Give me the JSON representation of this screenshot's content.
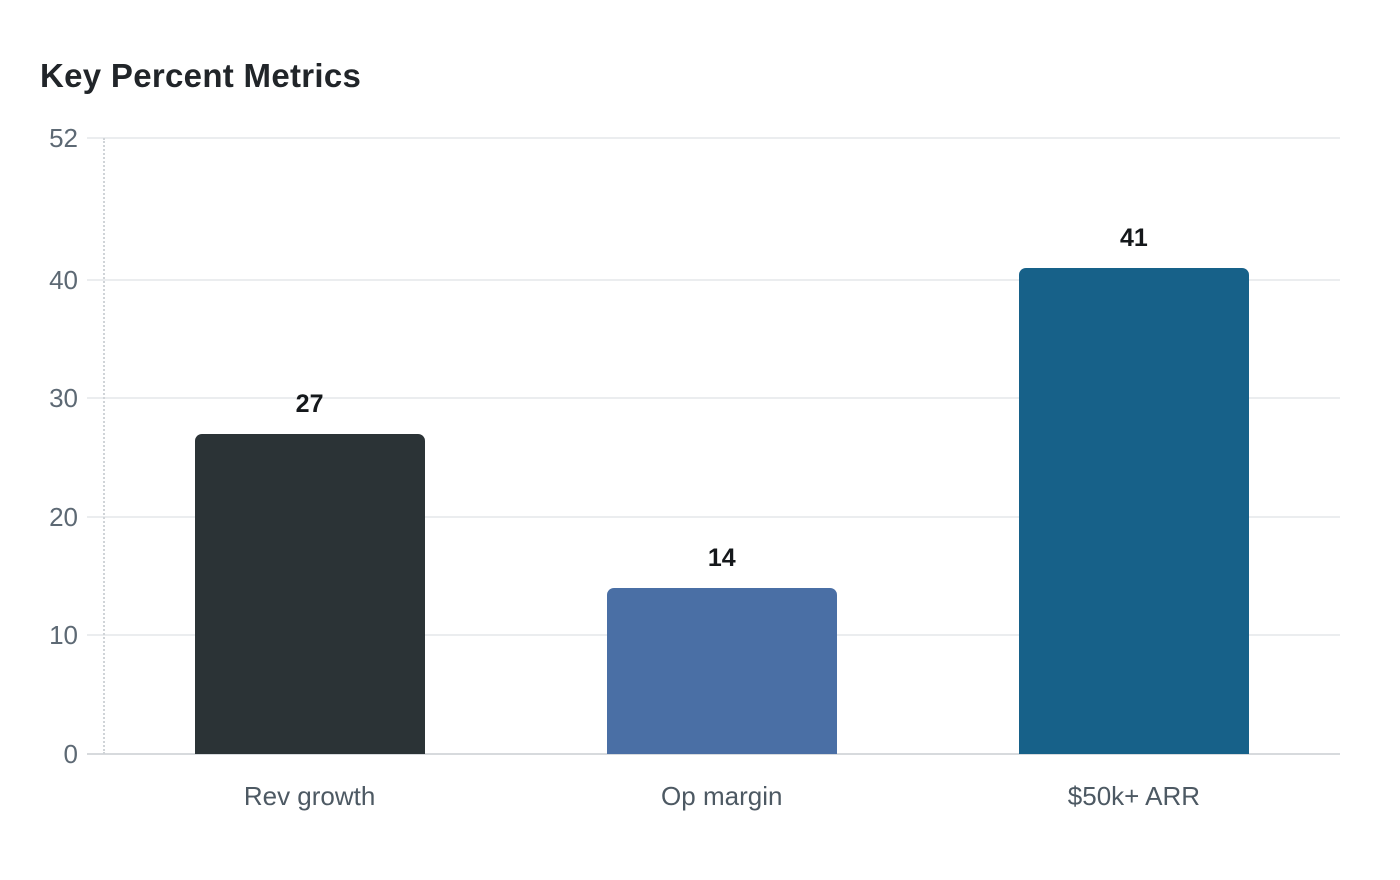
{
  "chart_data": {
    "type": "bar",
    "title": "Key Percent Metrics",
    "categories": [
      "Rev growth",
      "Op margin",
      "$50k+ ARR"
    ],
    "values": [
      27,
      14,
      41
    ],
    "ytick_labels": [
      "0",
      "10",
      "20",
      "30",
      "40",
      "52"
    ],
    "yticks": [
      0,
      10,
      20,
      30,
      40,
      52
    ],
    "ylim": [
      0,
      52
    ],
    "xlabel": "",
    "ylabel": "",
    "grid": true,
    "legend": "none",
    "background": "#ffffff",
    "colors": {
      "bars": [
        "#2b3336",
        "#4a6fa5",
        "#176189"
      ],
      "title": "#212529",
      "tick_label": "#5d6974",
      "category_label": "#4d5963",
      "value_label": "#15181b",
      "gridline": "#ebedef",
      "axis_line": "#d7dadd"
    }
  }
}
